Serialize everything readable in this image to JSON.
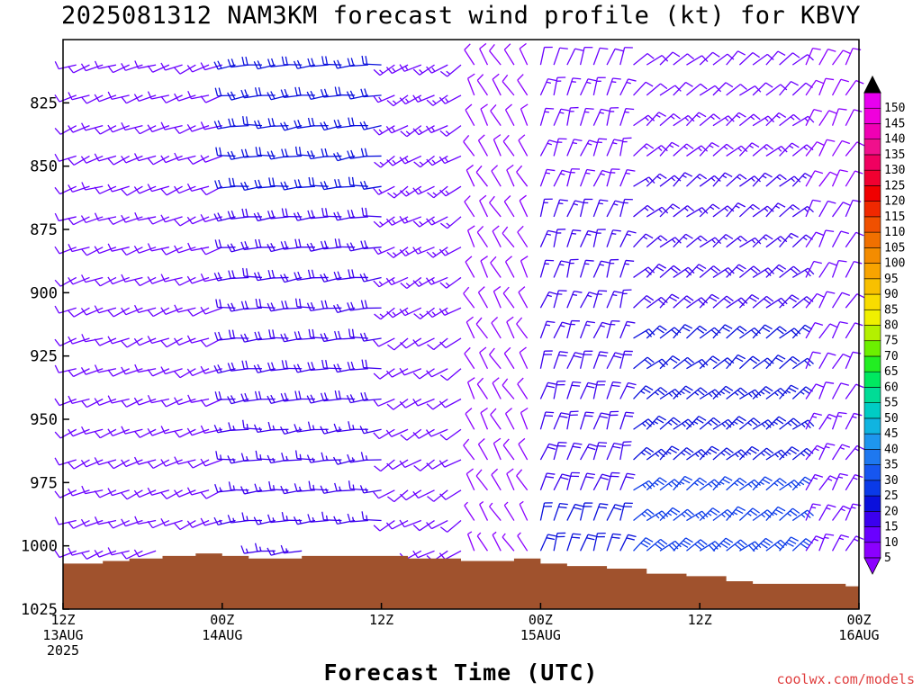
{
  "title": "2025081312 NAM3KM forecast wind profile (kt) for KBVY",
  "credit": "coolwx.com/models",
  "chart_data": {
    "type": "wind_profile",
    "xlabel": "Forecast Time (UTC)",
    "ylabel": "",
    "y_scale": "pressure_inverted",
    "ylim": [
      1025,
      800
    ],
    "yticks": [
      825,
      850,
      875,
      900,
      925,
      950,
      975,
      1000,
      1025
    ],
    "x_range_hours": [
      0,
      60
    ],
    "xticks": [
      {
        "hour": 0,
        "line1": "12Z",
        "line2": "13AUG",
        "line3": "2025"
      },
      {
        "hour": 12,
        "line1": "00Z",
        "line2": "14AUG",
        "line3": ""
      },
      {
        "hour": 24,
        "line1": "12Z",
        "line2": "",
        "line3": ""
      },
      {
        "hour": 36,
        "line1": "00Z",
        "line2": "15AUG",
        "line3": ""
      },
      {
        "hour": 48,
        "line1": "12Z",
        "line2": "",
        "line3": ""
      },
      {
        "hour": 60,
        "line1": "00Z",
        "line2": "16AUG",
        "line3": ""
      }
    ],
    "colorbar": {
      "values": [
        5,
        10,
        15,
        20,
        25,
        30,
        35,
        40,
        45,
        50,
        55,
        60,
        65,
        70,
        75,
        80,
        85,
        90,
        95,
        100,
        105,
        110,
        115,
        120,
        125,
        130,
        135,
        140,
        145,
        150
      ],
      "colors": [
        "#8b00ff",
        "#6a00ff",
        "#3b00ee",
        "#0a10dc",
        "#0a3ae8",
        "#1656f0",
        "#1e78f0",
        "#1e96ee",
        "#10b4e0",
        "#00ccc4",
        "#00dc96",
        "#00e860",
        "#22ee22",
        "#6cf000",
        "#b4f000",
        "#f0f000",
        "#f8dc00",
        "#f8c000",
        "#f8a400",
        "#f48c00",
        "#f07000",
        "#f05000",
        "#f02800",
        "#f00000",
        "#f00030",
        "#f00060",
        "#f0108c",
        "#f000b4",
        "#f000dc",
        "#e800f0"
      ]
    },
    "surface_pressure": [
      {
        "hour": 0,
        "p": 1007
      },
      {
        "hour": 3,
        "p": 1006
      },
      {
        "hour": 5,
        "p": 1005
      },
      {
        "hour": 7.5,
        "p": 1004
      },
      {
        "hour": 10,
        "p": 1003
      },
      {
        "hour": 12,
        "p": 1004
      },
      {
        "hour": 14,
        "p": 1005
      },
      {
        "hour": 18,
        "p": 1004
      },
      {
        "hour": 22,
        "p": 1004
      },
      {
        "hour": 26,
        "p": 1005
      },
      {
        "hour": 30,
        "p": 1006
      },
      {
        "hour": 34,
        "p": 1005
      },
      {
        "hour": 36,
        "p": 1007
      },
      {
        "hour": 38,
        "p": 1008
      },
      {
        "hour": 41,
        "p": 1009
      },
      {
        "hour": 44,
        "p": 1011
      },
      {
        "hour": 47,
        "p": 1012
      },
      {
        "hour": 50,
        "p": 1014
      },
      {
        "hour": 52,
        "p": 1015
      },
      {
        "hour": 55,
        "p": 1015
      },
      {
        "hour": 59,
        "p": 1016
      },
      {
        "hour": 60,
        "p": 1016
      }
    ],
    "surface_color": "#a0522d",
    "levels": [
      810,
      822,
      834,
      846,
      858,
      870,
      882,
      894,
      906,
      918,
      930,
      942,
      954,
      966,
      978,
      990,
      1002
    ],
    "wind_regimes": [
      {
        "hours_from": 0,
        "hours_to": 12,
        "direction_deg": 250,
        "speed_kt_upper": 12,
        "speed_kt_lower": 10
      },
      {
        "hours_from": 12,
        "hours_to": 24,
        "direction_deg": 265,
        "speed_kt_upper": 22,
        "speed_kt_lower": 15
      },
      {
        "hours_from": 24,
        "hours_to": 30,
        "direction_deg": 240,
        "speed_kt_upper": 15,
        "speed_kt_lower": 10
      },
      {
        "hours_from": 30,
        "hours_to": 35,
        "direction_deg": 330,
        "speed_kt_upper": 10,
        "speed_kt_lower": 7
      },
      {
        "hours_from": 35,
        "hours_to": 42,
        "direction_deg": 20,
        "speed_kt_upper": 12,
        "speed_kt_lower": 22
      },
      {
        "hours_from": 42,
        "hours_to": 55,
        "direction_deg": 50,
        "speed_kt_upper": 10,
        "speed_kt_lower": 30
      },
      {
        "hours_from": 55,
        "hours_to": 60,
        "direction_deg": 30,
        "speed_kt_upper": 8,
        "speed_kt_lower": 15
      }
    ]
  }
}
